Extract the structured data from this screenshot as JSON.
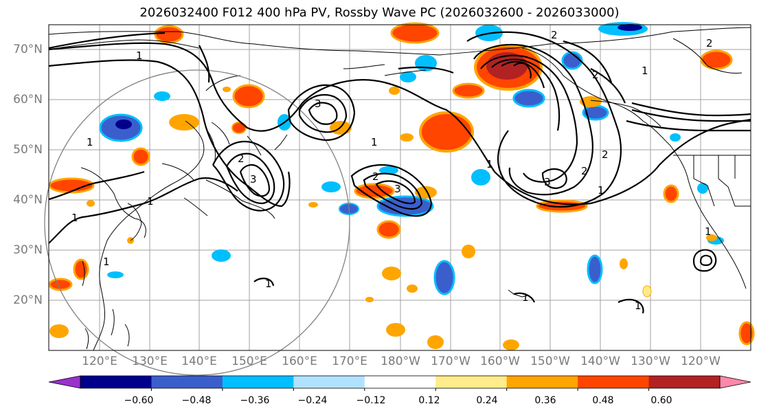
{
  "title": "2026032400 F012 400 hPa PV, Rossby Wave PC (2026032600 - 2026033000)",
  "lat_labels": [
    "70°N",
    "60°N",
    "50°N",
    "40°N",
    "30°N",
    "20°N"
  ],
  "lon_labels": [
    "120°E",
    "130°E",
    "140°E",
    "150°E",
    "160°E",
    "170°E",
    "180°W",
    "170°W",
    "160°W",
    "150°W",
    "140°W",
    "130°W",
    "120°W"
  ],
  "contour_labels": [
    "1",
    "2",
    "3"
  ],
  "colorbar": {
    "ticks": [
      "−0.60",
      "−0.48",
      "−0.36",
      "−0.24",
      "−0.12",
      "0.12",
      "0.24",
      "0.36",
      "0.48",
      "0.60"
    ],
    "colors": [
      "#9932cc",
      "#00008b",
      "#3a5fcd",
      "#00bfff",
      "#b0e2ff",
      "#ffffff",
      "#ffec8b",
      "#ffa500",
      "#ff4500",
      "#b22222",
      "#ff88aa"
    ]
  },
  "colors": {
    "land_outline": "#000000",
    "grid": "#a0a0a0",
    "circle": "#808080",
    "contour": "#000000"
  }
}
